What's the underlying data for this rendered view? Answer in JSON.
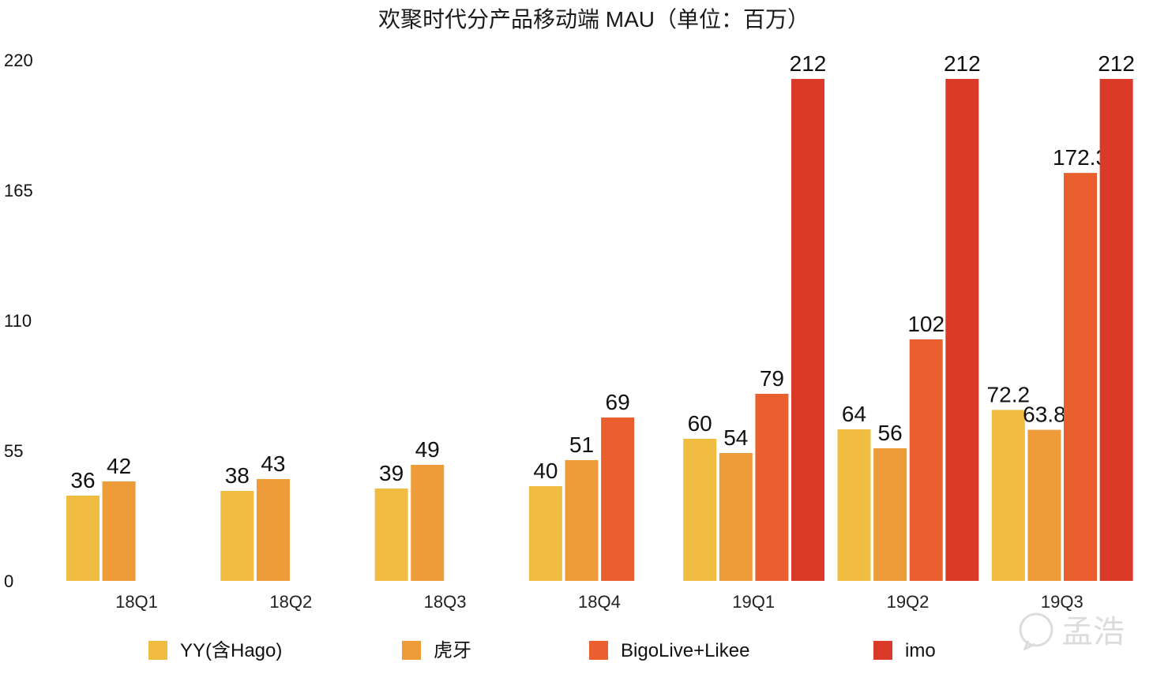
{
  "chart_data": {
    "type": "bar",
    "title": "欢聚时代分产品移动端 MAU（单位：百万）",
    "categories": [
      "18Q1",
      "18Q2",
      "18Q3",
      "18Q4",
      "19Q1",
      "19Q2",
      "19Q3"
    ],
    "series": [
      {
        "name": "YY(含Hago)",
        "color": "#F0BC42",
        "values": [
          36,
          38,
          39,
          40,
          60,
          64,
          72.2
        ]
      },
      {
        "name": "虎牙",
        "color": "#EE9B3A",
        "values": [
          42,
          43,
          49,
          51,
          54,
          56,
          63.8
        ]
      },
      {
        "name": "BigoLive+Likee",
        "color": "#E9602E",
        "values": [
          null,
          null,
          null,
          69,
          79,
          102,
          172.3
        ]
      },
      {
        "name": "imo",
        "color": "#DC3A28",
        "values": [
          null,
          null,
          null,
          null,
          212,
          212,
          212
        ]
      }
    ],
    "yticks": [
      0,
      55,
      110,
      165,
      220
    ],
    "ylim": [
      0,
      220
    ],
    "xlabel": "",
    "ylabel": "",
    "grid": false,
    "legend_position": "bottom"
  },
  "watermark": {
    "text": "孟浩",
    "icon": "chat-bubble-icon"
  }
}
